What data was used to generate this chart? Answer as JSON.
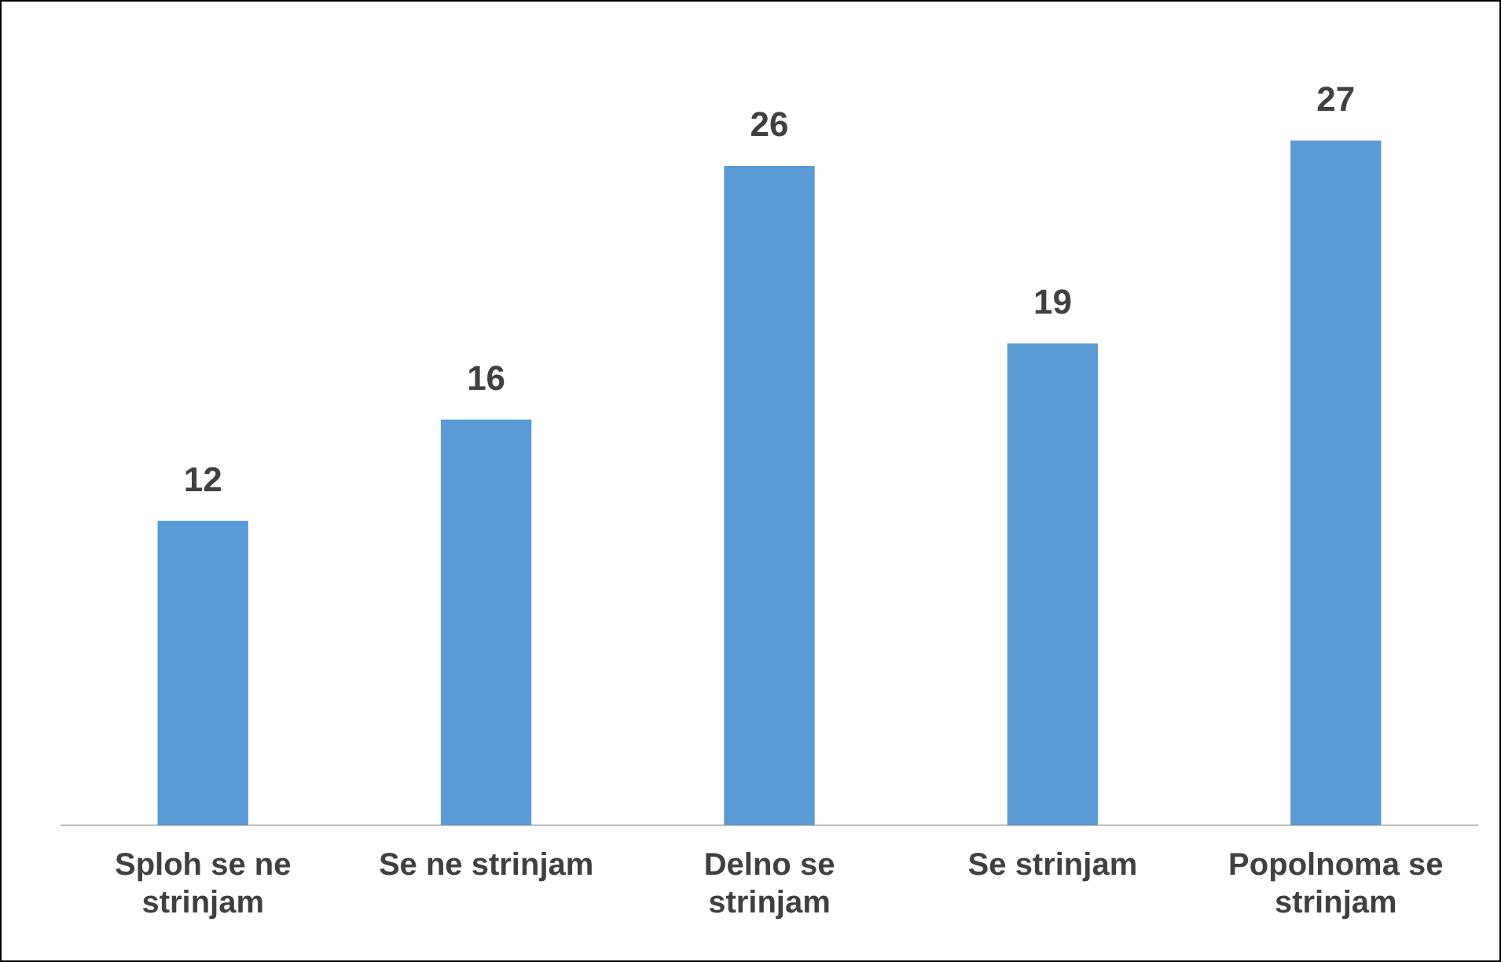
{
  "chart_data": {
    "type": "bar",
    "categories": [
      "Sploh se ne strinjam",
      "Se ne strinjam",
      "Delno se strinjam",
      "Se strinjam",
      "Popolnoma se strinjam"
    ],
    "values": [
      12,
      16,
      26,
      19,
      27
    ],
    "color": "#5b9bd5",
    "data_labels": true,
    "grid": false,
    "legend": false
  }
}
